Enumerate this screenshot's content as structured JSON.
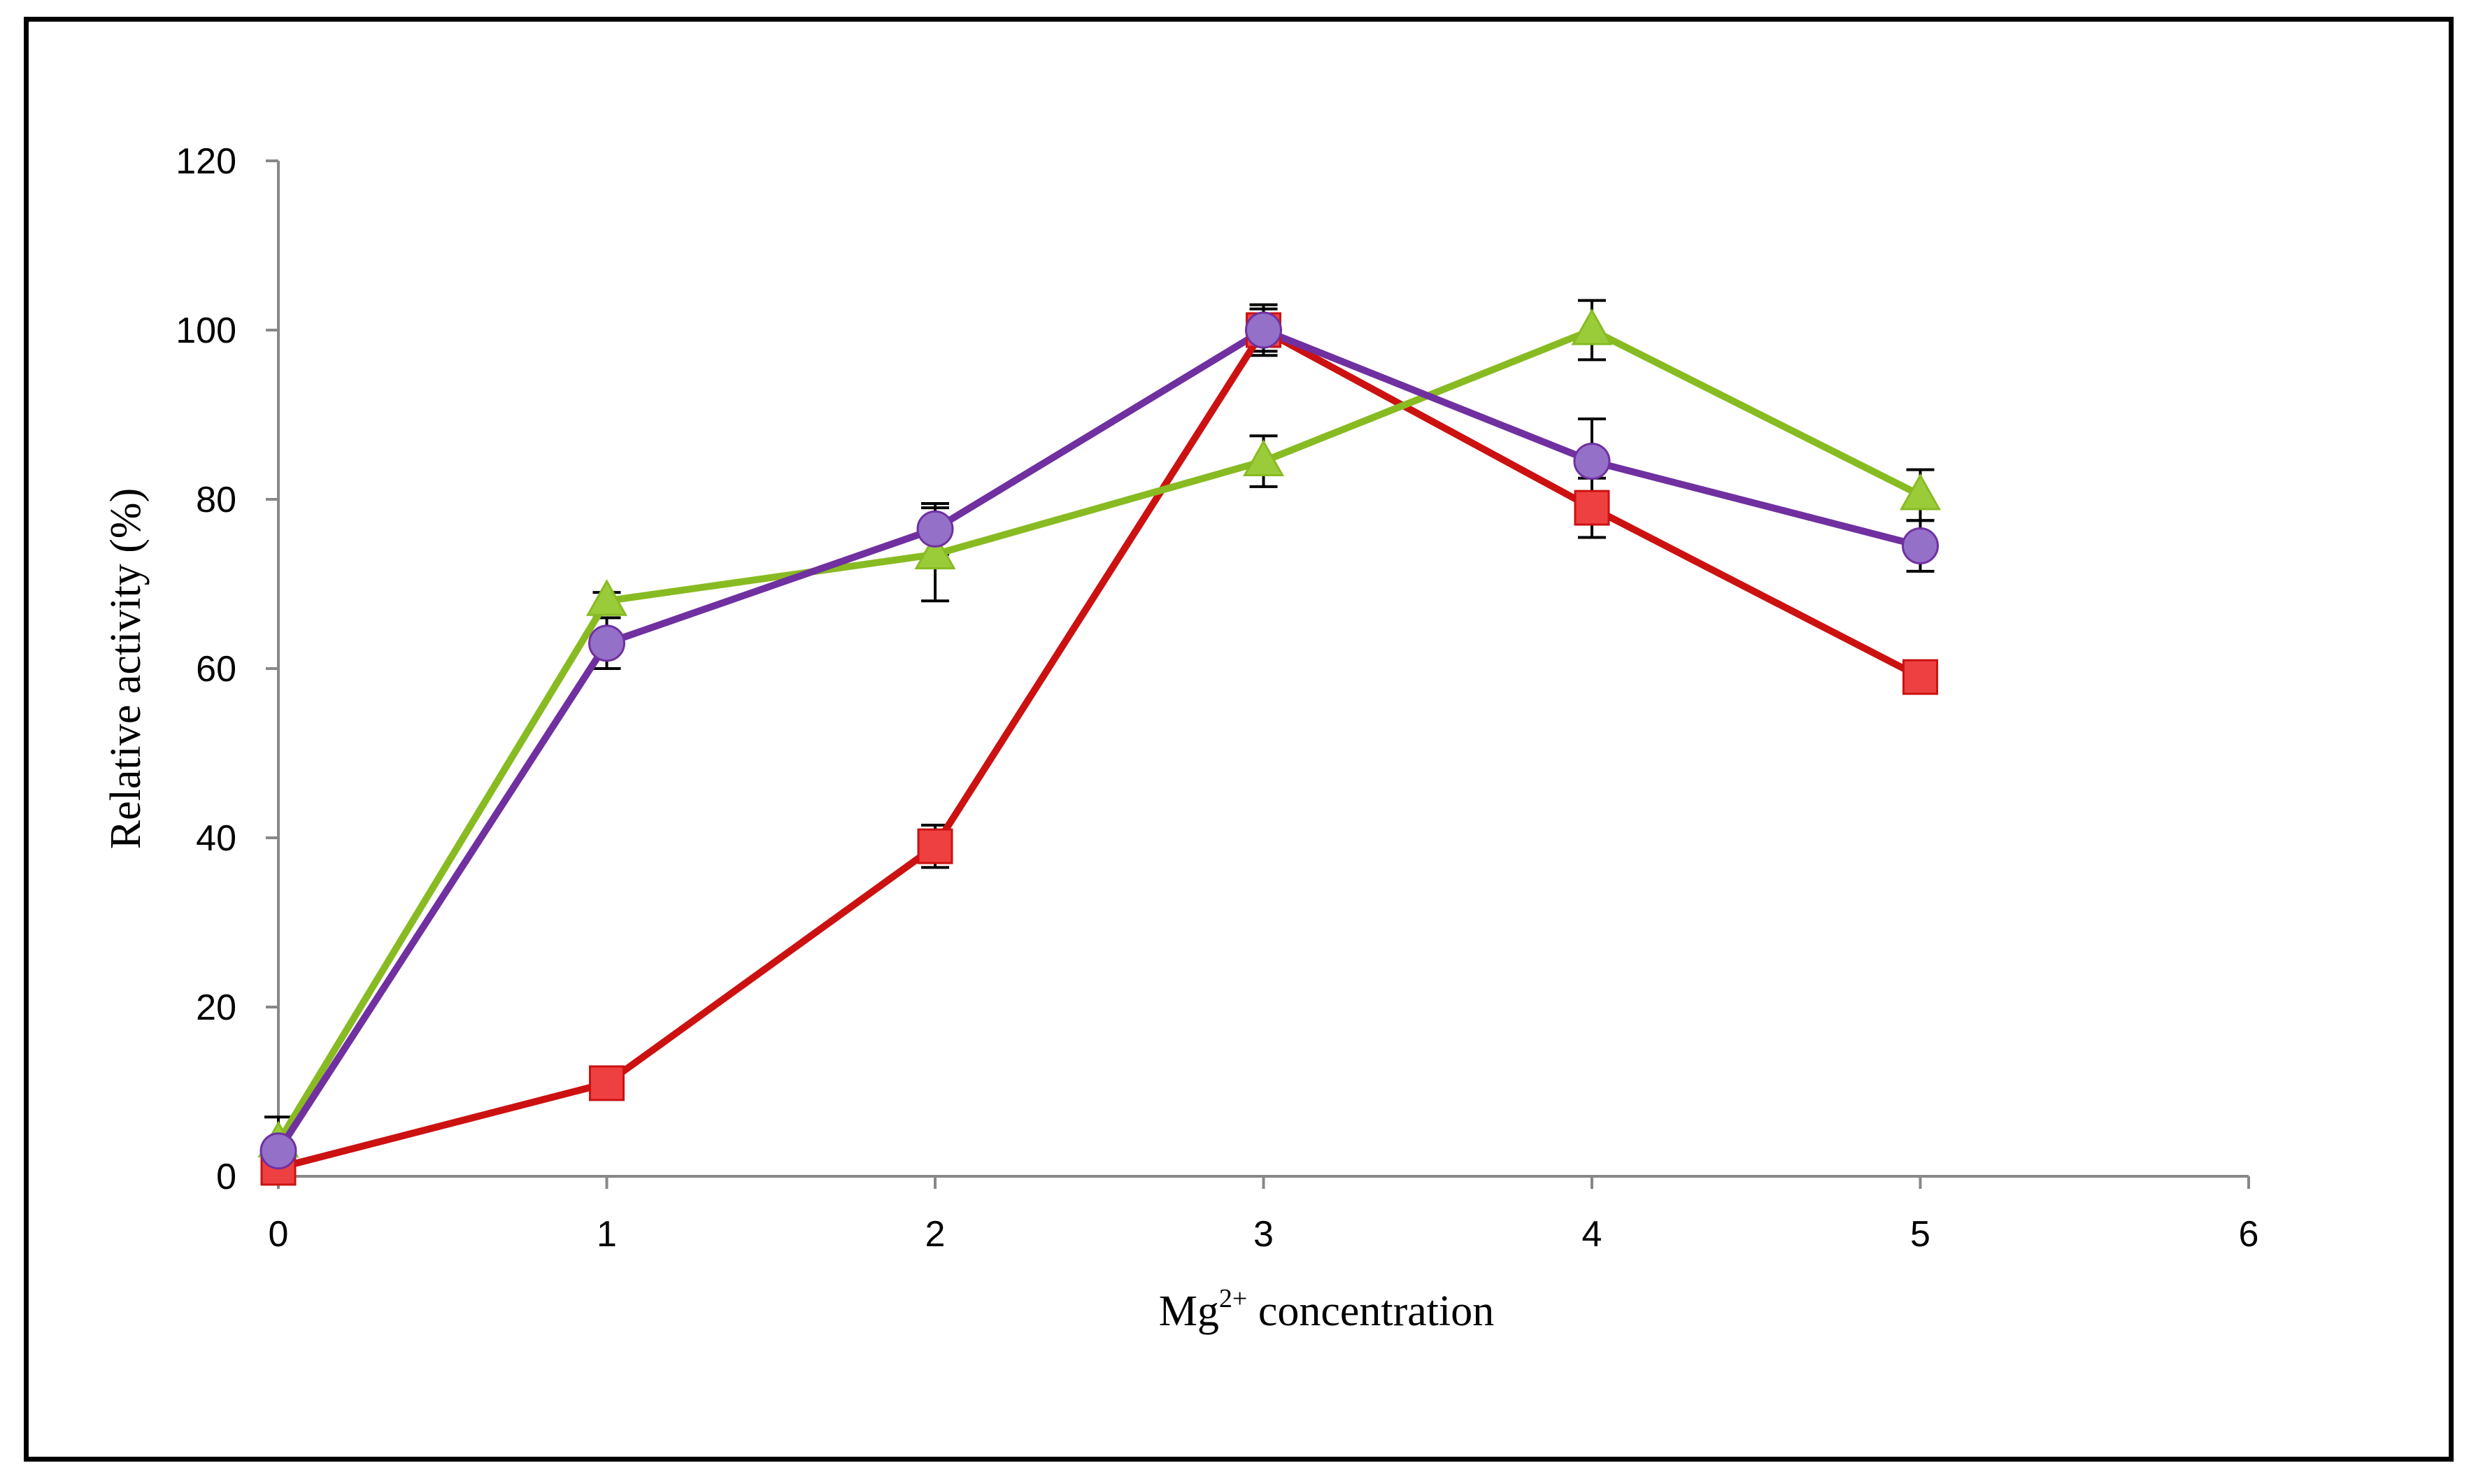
{
  "chart_data": {
    "type": "line",
    "title": "",
    "xlabel_main": "Mg",
    "xlabel_sup": "2+",
    "xlabel_rest": " concentration",
    "ylabel": "Relative activity (%)",
    "xlim": [
      0,
      6
    ],
    "ylim": [
      0,
      120
    ],
    "x_ticks": [
      "0",
      "1",
      "2",
      "3",
      "4",
      "5",
      "6"
    ],
    "y_ticks": [
      "0",
      "20",
      "40",
      "60",
      "80",
      "100",
      "120"
    ],
    "x": [
      0,
      1,
      2,
      3,
      4,
      5
    ],
    "grid": false,
    "legend": null,
    "series": [
      {
        "name": "red-square",
        "marker": "square",
        "color": "#cc1111",
        "fill": "#ee4040",
        "values": [
          1,
          11,
          39,
          100,
          79,
          59
        ],
        "errors": [
          0,
          0,
          2.5,
          2.5,
          3.5,
          0
        ]
      },
      {
        "name": "green-triangle",
        "marker": "triangle",
        "color": "#88bb22",
        "fill": "#9acc3a",
        "values": [
          4,
          68,
          73.5,
          84.5,
          100,
          80.5
        ],
        "errors": [
          3,
          1,
          5.5,
          3,
          3.5,
          3
        ]
      },
      {
        "name": "purple-circle",
        "marker": "circle",
        "color": "#7030a0",
        "fill": "#9470c8",
        "values": [
          3,
          63,
          76.5,
          100,
          84.5,
          74.5
        ],
        "errors": [
          0,
          3,
          3,
          3,
          5,
          3
        ]
      }
    ]
  }
}
